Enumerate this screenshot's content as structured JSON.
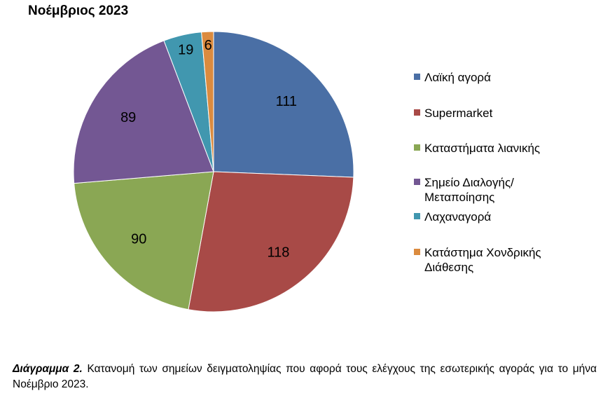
{
  "chart_data": {
    "type": "pie",
    "title": "Νοέμβριος 2023",
    "categories": [
      "Λαϊκή αγορά",
      "Supermarket",
      "Καταστήματα λιανικής",
      "Σημείο Διαλογής/Μεταποίησης",
      "Λαχαναγορά",
      "Κατάστημα Χονδρικής Διάθεσης"
    ],
    "values": [
      111,
      118,
      90,
      89,
      19,
      6
    ],
    "colors": [
      "#4a6fa5",
      "#a84a47",
      "#8aa754",
      "#735793",
      "#4197af",
      "#db8b3f"
    ],
    "legend_position": "right"
  },
  "caption": {
    "prefix": "Διάγραμμα 2.",
    "text": " Κατανομή των σημείων δειγματοληψίας που αφορά τους ελέγχους της εσωτερικής αγοράς για το μήνα Νοέμβριο 2023."
  }
}
